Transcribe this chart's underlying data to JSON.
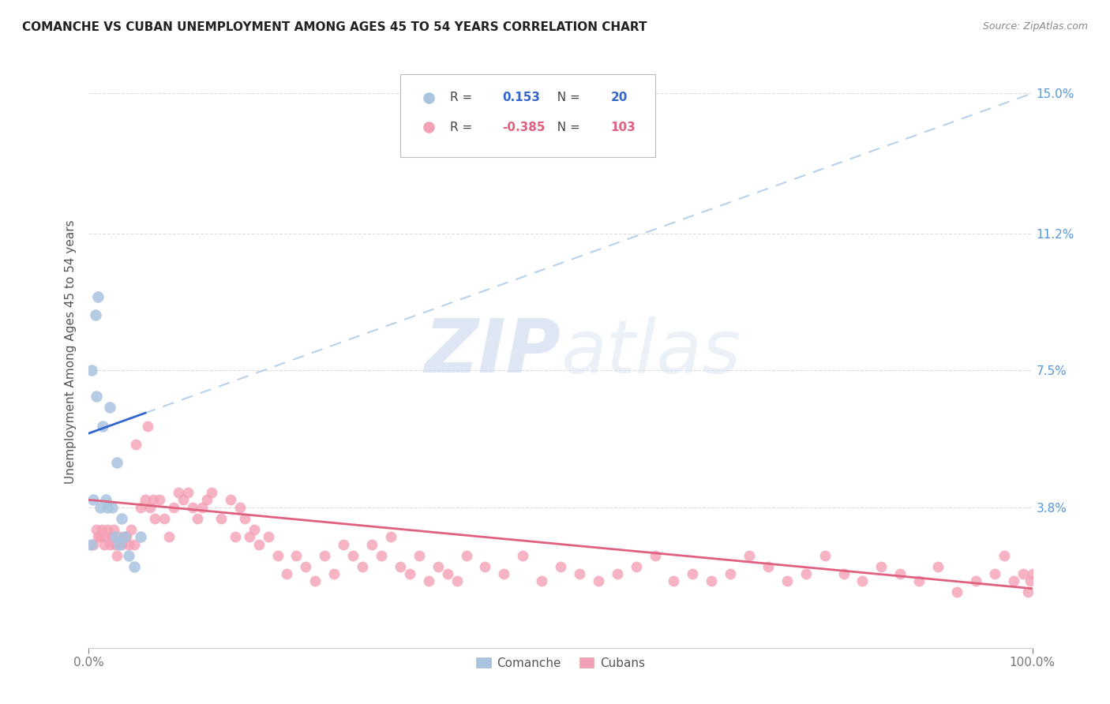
{
  "title": "COMANCHE VS CUBAN UNEMPLOYMENT AMONG AGES 45 TO 54 YEARS CORRELATION CHART",
  "source": "Source: ZipAtlas.com",
  "ylabel": "Unemployment Among Ages 45 to 54 years",
  "xlim": [
    0,
    1.0
  ],
  "ylim": [
    0,
    0.16
  ],
  "comanche_r": "0.153",
  "comanche_n": "20",
  "cuban_r": "-0.385",
  "cuban_n": "103",
  "comanche_color": "#a8c4e0",
  "cuban_color": "#f4a0b5",
  "comanche_line_color": "#3366cc",
  "cuban_line_color": "#e06080",
  "dashed_line_color": "#b0cce8",
  "watermark_zip": "ZIP",
  "watermark_atlas": "atlas",
  "background_color": "#ffffff",
  "grid_color": "#dddddd",
  "ytick_values": [
    0.038,
    0.075,
    0.112,
    0.15
  ],
  "ytick_labels": [
    "3.8%",
    "7.5%",
    "11.2%",
    "15.0%"
  ],
  "comanche_x": [
    0.002,
    0.003,
    0.005,
    0.007,
    0.008,
    0.01,
    0.012,
    0.015,
    0.018,
    0.02,
    0.022,
    0.025,
    0.028,
    0.03,
    0.032,
    0.035,
    0.038,
    0.042,
    0.048,
    0.055
  ],
  "comanche_y": [
    0.028,
    0.075,
    0.04,
    0.09,
    0.068,
    0.095,
    0.038,
    0.06,
    0.04,
    0.038,
    0.065,
    0.038,
    0.03,
    0.05,
    0.028,
    0.035,
    0.03,
    0.025,
    0.022,
    0.03
  ],
  "cuban_x": [
    0.005,
    0.008,
    0.01,
    0.012,
    0.014,
    0.016,
    0.018,
    0.02,
    0.022,
    0.024,
    0.026,
    0.028,
    0.03,
    0.032,
    0.035,
    0.038,
    0.04,
    0.042,
    0.045,
    0.048,
    0.05,
    0.055,
    0.06,
    0.062,
    0.065,
    0.068,
    0.07,
    0.075,
    0.08,
    0.085,
    0.09,
    0.095,
    0.1,
    0.105,
    0.11,
    0.115,
    0.12,
    0.125,
    0.13,
    0.14,
    0.15,
    0.155,
    0.16,
    0.165,
    0.17,
    0.175,
    0.18,
    0.19,
    0.2,
    0.21,
    0.22,
    0.23,
    0.24,
    0.25,
    0.26,
    0.27,
    0.28,
    0.29,
    0.3,
    0.31,
    0.32,
    0.33,
    0.34,
    0.35,
    0.36,
    0.37,
    0.38,
    0.39,
    0.4,
    0.42,
    0.44,
    0.46,
    0.48,
    0.5,
    0.52,
    0.54,
    0.56,
    0.58,
    0.6,
    0.62,
    0.64,
    0.66,
    0.68,
    0.7,
    0.72,
    0.74,
    0.76,
    0.78,
    0.8,
    0.82,
    0.84,
    0.86,
    0.88,
    0.9,
    0.92,
    0.94,
    0.96,
    0.97,
    0.98,
    0.99,
    0.995,
    0.998,
    1.0
  ],
  "cuban_y": [
    0.028,
    0.032,
    0.03,
    0.03,
    0.032,
    0.028,
    0.03,
    0.032,
    0.028,
    0.03,
    0.032,
    0.028,
    0.025,
    0.03,
    0.028,
    0.03,
    0.03,
    0.028,
    0.032,
    0.028,
    0.055,
    0.038,
    0.04,
    0.06,
    0.038,
    0.04,
    0.035,
    0.04,
    0.035,
    0.03,
    0.038,
    0.042,
    0.04,
    0.042,
    0.038,
    0.035,
    0.038,
    0.04,
    0.042,
    0.035,
    0.04,
    0.03,
    0.038,
    0.035,
    0.03,
    0.032,
    0.028,
    0.03,
    0.025,
    0.02,
    0.025,
    0.022,
    0.018,
    0.025,
    0.02,
    0.028,
    0.025,
    0.022,
    0.028,
    0.025,
    0.03,
    0.022,
    0.02,
    0.025,
    0.018,
    0.022,
    0.02,
    0.018,
    0.025,
    0.022,
    0.02,
    0.025,
    0.018,
    0.022,
    0.02,
    0.018,
    0.02,
    0.022,
    0.025,
    0.018,
    0.02,
    0.018,
    0.02,
    0.025,
    0.022,
    0.018,
    0.02,
    0.025,
    0.02,
    0.018,
    0.022,
    0.02,
    0.018,
    0.022,
    0.015,
    0.018,
    0.02,
    0.025,
    0.018,
    0.02,
    0.015,
    0.018,
    0.02
  ]
}
